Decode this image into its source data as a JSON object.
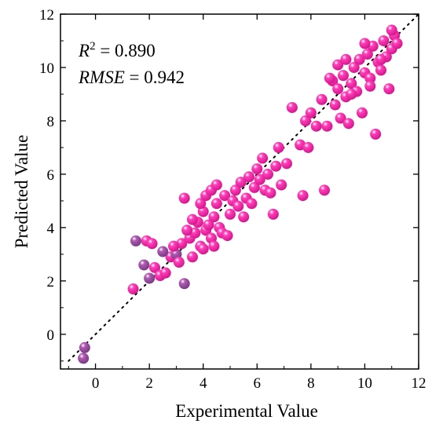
{
  "chart_data": {
    "type": "scatter",
    "xlabel": "Experimental Value",
    "ylabel": "Predicted Value",
    "xlim": [
      -1.3,
      12
    ],
    "ylim": [
      -1.3,
      12
    ],
    "x_ticks": [
      0,
      2,
      4,
      6,
      8,
      10,
      12
    ],
    "y_ticks": [
      0,
      2,
      4,
      6,
      8,
      10,
      12
    ],
    "annotation": {
      "r2_label": "R",
      "r2_sup": "2",
      "r2_value": " = 0.890",
      "rmse_label": "RMSE",
      "rmse_value": " = 0.942"
    },
    "reference_line": "y = x (dotted)",
    "grid": false,
    "colors": {
      "points_main": "#ff3fb8",
      "points_alt": "#b05ab0",
      "reference": "#000000"
    },
    "points": [
      [
        -0.4,
        -0.5
      ],
      [
        -0.45,
        -0.9
      ],
      [
        1.4,
        1.7
      ],
      [
        1.5,
        3.5
      ],
      [
        1.9,
        3.5
      ],
      [
        2.1,
        3.4
      ],
      [
        1.8,
        2.6
      ],
      [
        2.2,
        2.5
      ],
      [
        2.4,
        2.2
      ],
      [
        2.0,
        2.1
      ],
      [
        2.6,
        2.3
      ],
      [
        2.8,
        2.9
      ],
      [
        3.0,
        3.0
      ],
      [
        3.1,
        2.7
      ],
      [
        3.2,
        3.4
      ],
      [
        3.3,
        1.9
      ],
      [
        3.3,
        5.1
      ],
      [
        3.5,
        3.6
      ],
      [
        2.5,
        3.1
      ],
      [
        2.9,
        3.3
      ],
      [
        3.6,
        2.9
      ],
      [
        3.7,
        3.8
      ],
      [
        3.8,
        4.2
      ],
      [
        3.9,
        3.3
      ],
      [
        4.0,
        4.6
      ],
      [
        4.1,
        3.9
      ],
      [
        4.2,
        4.1
      ],
      [
        4.3,
        3.6
      ],
      [
        4.4,
        4.4
      ],
      [
        4.5,
        4.9
      ],
      [
        4.6,
        4.0
      ],
      [
        4.7,
        3.8
      ],
      [
        4.8,
        5.2
      ],
      [
        4.9,
        3.7
      ],
      [
        3.4,
        3.9
      ],
      [
        3.6,
        4.3
      ],
      [
        3.9,
        4.9
      ],
      [
        4.1,
        5.2
      ],
      [
        4.3,
        5.4
      ],
      [
        4.5,
        5.6
      ],
      [
        4.4,
        3.3
      ],
      [
        4.0,
        3.2
      ],
      [
        5.0,
        4.5
      ],
      [
        5.1,
        5.0
      ],
      [
        5.2,
        5.4
      ],
      [
        5.3,
        4.8
      ],
      [
        5.4,
        5.7
      ],
      [
        5.5,
        4.4
      ],
      [
        5.6,
        5.1
      ],
      [
        5.7,
        5.9
      ],
      [
        5.8,
        4.9
      ],
      [
        5.9,
        5.5
      ],
      [
        6.0,
        6.2
      ],
      [
        6.1,
        5.8
      ],
      [
        6.2,
        6.6
      ],
      [
        6.3,
        5.4
      ],
      [
        6.4,
        6.0
      ],
      [
        6.5,
        5.3
      ],
      [
        6.6,
        4.5
      ],
      [
        6.7,
        6.3
      ],
      [
        6.8,
        7.0
      ],
      [
        6.9,
        5.6
      ],
      [
        7.1,
        6.4
      ],
      [
        7.3,
        8.5
      ],
      [
        7.6,
        7.1
      ],
      [
        7.7,
        5.2
      ],
      [
        7.8,
        8.0
      ],
      [
        7.9,
        7.0
      ],
      [
        8.0,
        8.3
      ],
      [
        8.2,
        7.8
      ],
      [
        8.4,
        8.8
      ],
      [
        8.5,
        5.4
      ],
      [
        8.6,
        7.8
      ],
      [
        8.8,
        9.5
      ],
      [
        8.9,
        8.6
      ],
      [
        9.0,
        9.2
      ],
      [
        9.1,
        8.1
      ],
      [
        9.2,
        9.7
      ],
      [
        9.3,
        8.9
      ],
      [
        9.4,
        7.9
      ],
      [
        9.5,
        9.4
      ],
      [
        9.6,
        10.0
      ],
      [
        9.7,
        9.1
      ],
      [
        9.8,
        10.3
      ],
      [
        9.9,
        8.3
      ],
      [
        10.0,
        9.8
      ],
      [
        10.1,
        10.5
      ],
      [
        10.2,
        9.6
      ],
      [
        10.3,
        10.8
      ],
      [
        10.4,
        7.5
      ],
      [
        10.5,
        10.2
      ],
      [
        10.6,
        9.9
      ],
      [
        10.7,
        11.0
      ],
      [
        10.8,
        10.4
      ],
      [
        10.9,
        9.2
      ],
      [
        11.0,
        10.7
      ],
      [
        11.1,
        11.2
      ],
      [
        11.2,
        10.9
      ],
      [
        9.0,
        10.1
      ],
      [
        9.3,
        10.3
      ],
      [
        8.7,
        9.6
      ],
      [
        10.0,
        10.9
      ],
      [
        10.6,
        10.3
      ],
      [
        11.0,
        11.4
      ],
      [
        9.5,
        9.0
      ],
      [
        10.2,
        9.3
      ]
    ]
  }
}
